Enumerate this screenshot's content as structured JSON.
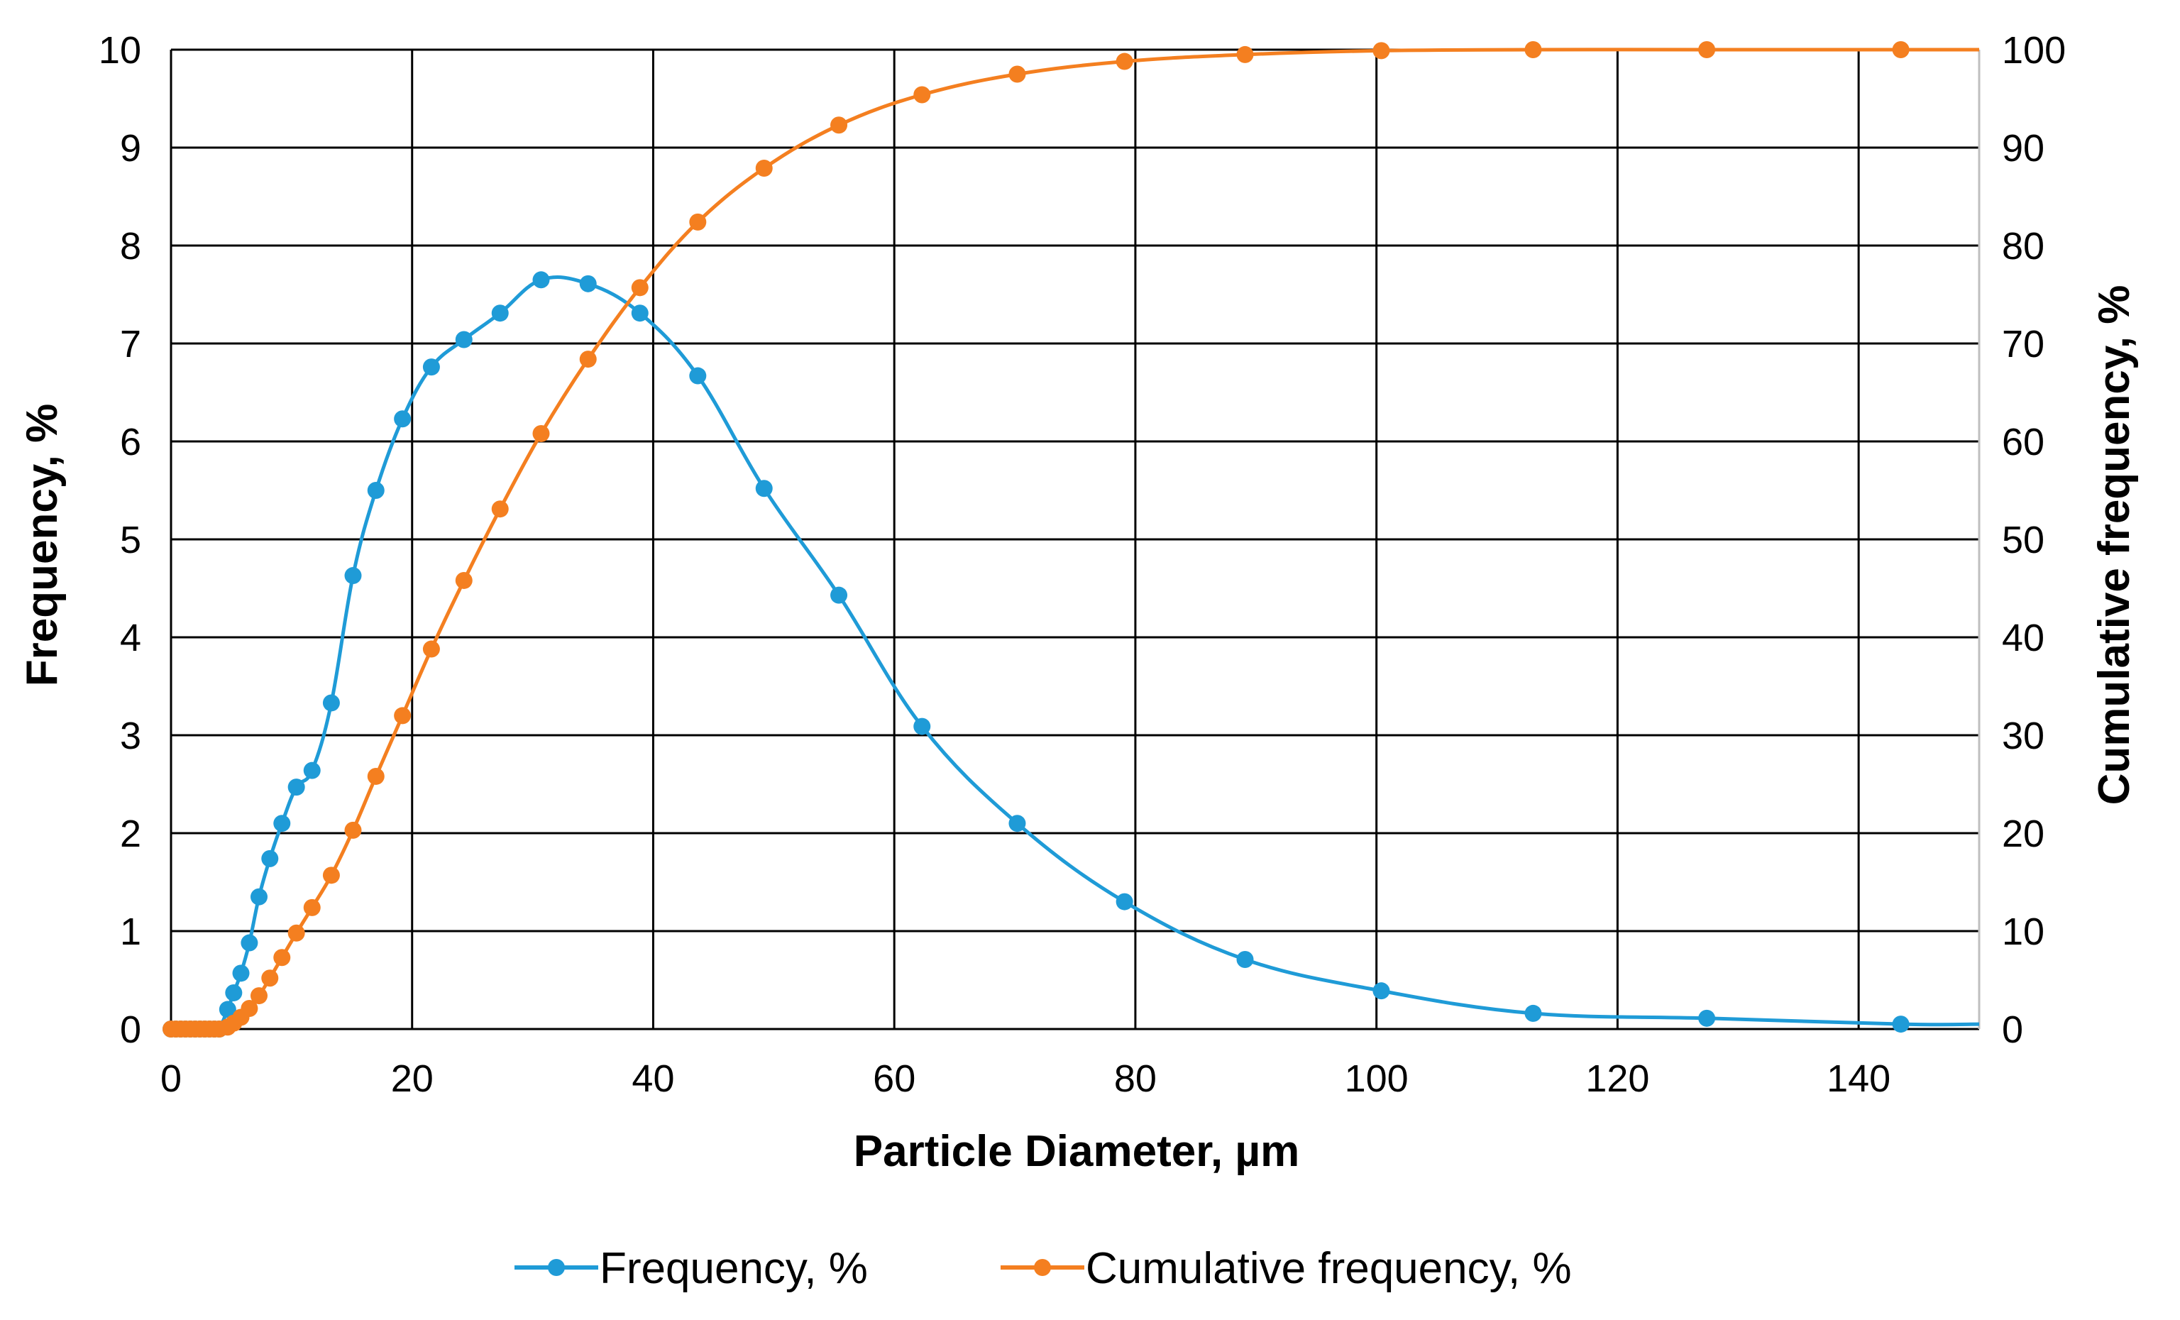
{
  "chart_data": {
    "type": "line",
    "title": "",
    "xlabel": "Particle Diameter, µm",
    "ylabel": "Frequency, %",
    "y2label": "Cumulative frequency, %",
    "xlim": [
      0,
      150
    ],
    "ylim": [
      0,
      10
    ],
    "y2lim": [
      0,
      100
    ],
    "xticks": [
      "0",
      "20",
      "40",
      "60",
      "80",
      "100",
      "120",
      "140"
    ],
    "yticks": [
      "0",
      "1",
      "2",
      "3",
      "4",
      "5",
      "6",
      "7",
      "8",
      "9",
      "10"
    ],
    "y2ticks": [
      "0",
      "10",
      "20",
      "30",
      "40",
      "50",
      "60",
      "70",
      "80",
      "90",
      "100"
    ],
    "grid": true,
    "legend_position": "bottom",
    "series": [
      {
        "name": "Frequency, %",
        "axis": "left",
        "color": "#1F9BD7",
        "x": [
          0,
          0.4,
          0.8,
          1.2,
          1.6,
          2.0,
          2.4,
          2.8,
          3.2,
          3.6,
          4.0,
          4.7,
          5.2,
          5.8,
          6.5,
          7.3,
          8.2,
          9.2,
          10.4,
          11.7,
          13.3,
          15.1,
          17.0,
          19.2,
          21.6,
          24.3,
          27.3,
          30.7,
          34.6,
          38.9,
          43.7,
          49.2,
          55.4,
          62.3,
          70.2,
          79.1,
          89.1,
          100.4,
          113.0,
          127.4,
          143.5,
          150.0
        ],
        "y": [
          0,
          0,
          0,
          0,
          0,
          0,
          0,
          0,
          0,
          0,
          0,
          0.2,
          0.37,
          0.57,
          0.88,
          1.35,
          1.74,
          2.1,
          2.47,
          2.64,
          3.33,
          4.63,
          5.5,
          6.23,
          6.76,
          7.04,
          7.31,
          7.65,
          7.61,
          7.31,
          6.67,
          5.52,
          4.43,
          3.09,
          2.1,
          1.3,
          0.71,
          0.39,
          0.16,
          0.11,
          0.05,
          0.05
        ],
        "markers": [
          0,
          0.4,
          0.8,
          1.2,
          1.6,
          2.0,
          2.4,
          2.8,
          3.2,
          3.6,
          4.0,
          4.7,
          5.2,
          5.8,
          6.5,
          7.3,
          8.2,
          9.2,
          10.4,
          11.7,
          13.3,
          15.1,
          17.0,
          19.2,
          21.6,
          24.3,
          27.3,
          30.7,
          34.6,
          38.9,
          43.7,
          49.2,
          55.4,
          62.3,
          70.2,
          79.1,
          89.1,
          100.4,
          113.0,
          127.4,
          143.5
        ]
      },
      {
        "name": "Cumulative frequency, %",
        "axis": "right",
        "color": "#F47F20",
        "x": [
          0,
          0.4,
          0.8,
          1.2,
          1.6,
          2.0,
          2.4,
          2.8,
          3.2,
          3.6,
          4.0,
          4.7,
          5.2,
          5.8,
          6.5,
          7.3,
          8.2,
          9.2,
          10.4,
          11.7,
          13.3,
          15.1,
          17.0,
          19.2,
          21.6,
          24.3,
          27.3,
          30.7,
          34.6,
          38.9,
          43.7,
          49.2,
          55.4,
          62.3,
          70.2,
          79.1,
          89.1,
          100.4,
          113.0,
          127.4,
          143.5,
          150.0
        ],
        "y": [
          0,
          0,
          0,
          0,
          0,
          0,
          0,
          0,
          0,
          0,
          0,
          0.2,
          0.6,
          1.2,
          2.1,
          3.4,
          5.2,
          7.3,
          9.8,
          12.4,
          15.7,
          20.3,
          25.8,
          32.0,
          38.8,
          45.8,
          53.1,
          60.8,
          68.4,
          75.7,
          82.4,
          87.9,
          92.3,
          95.4,
          97.5,
          98.8,
          99.5,
          99.9,
          100,
          100,
          100,
          100
        ],
        "markers": [
          0,
          0.4,
          0.8,
          1.2,
          1.6,
          2.0,
          2.4,
          2.8,
          3.2,
          3.6,
          4.0,
          4.7,
          5.2,
          5.8,
          6.5,
          7.3,
          8.2,
          9.2,
          10.4,
          11.7,
          13.3,
          15.1,
          17.0,
          19.2,
          21.6,
          24.3,
          27.3,
          30.7,
          34.6,
          38.9,
          43.7,
          49.2,
          55.4,
          62.3,
          70.2,
          79.1,
          89.1,
          100.4,
          113.0,
          127.4,
          143.5
        ]
      }
    ]
  }
}
